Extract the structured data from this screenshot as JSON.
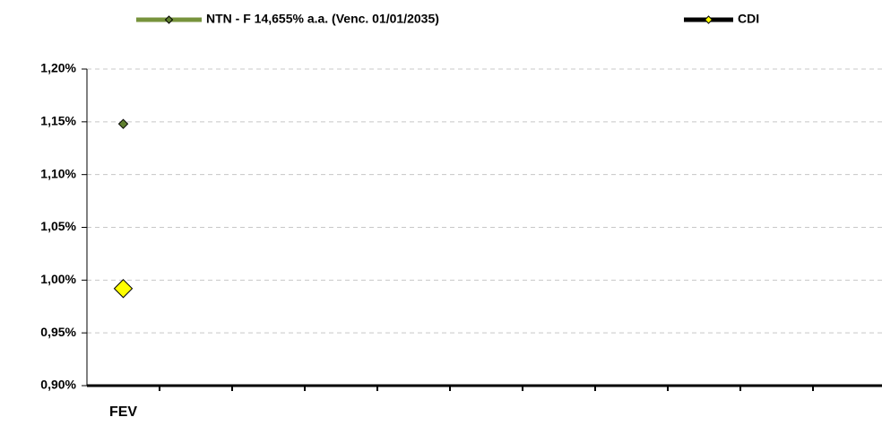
{
  "chart_data": {
    "type": "line",
    "categories": [
      "FEV",
      null,
      null,
      null,
      null,
      null,
      null,
      null,
      null,
      null,
      null
    ],
    "series": [
      {
        "name": "NTN - F 14,655% a.a. (Venc. 01/01/2035)",
        "color": "#77933c",
        "marker_color": "#5f7f2f",
        "values": [
          1.148,
          null,
          null,
          null,
          null,
          null,
          null,
          null,
          null,
          null,
          null
        ]
      },
      {
        "name": "CDI",
        "color": "#000000",
        "marker_color": "#ffff00",
        "values": [
          0.992,
          null,
          null,
          null,
          null,
          null,
          null,
          null,
          null,
          null,
          null
        ]
      }
    ],
    "ylim": [
      0.9,
      1.2
    ],
    "yticks": [
      {
        "value": 0.9,
        "label": "0,90%"
      },
      {
        "value": 0.95,
        "label": "0,95%"
      },
      {
        "value": 1.0,
        "label": "1,00%"
      },
      {
        "value": 1.05,
        "label": "1,05%"
      },
      {
        "value": 1.1,
        "label": "1,10%"
      },
      {
        "value": 1.15,
        "label": "1,15%"
      },
      {
        "value": 1.2,
        "label": "1,20%"
      }
    ],
    "grid": true,
    "legend": "top"
  }
}
